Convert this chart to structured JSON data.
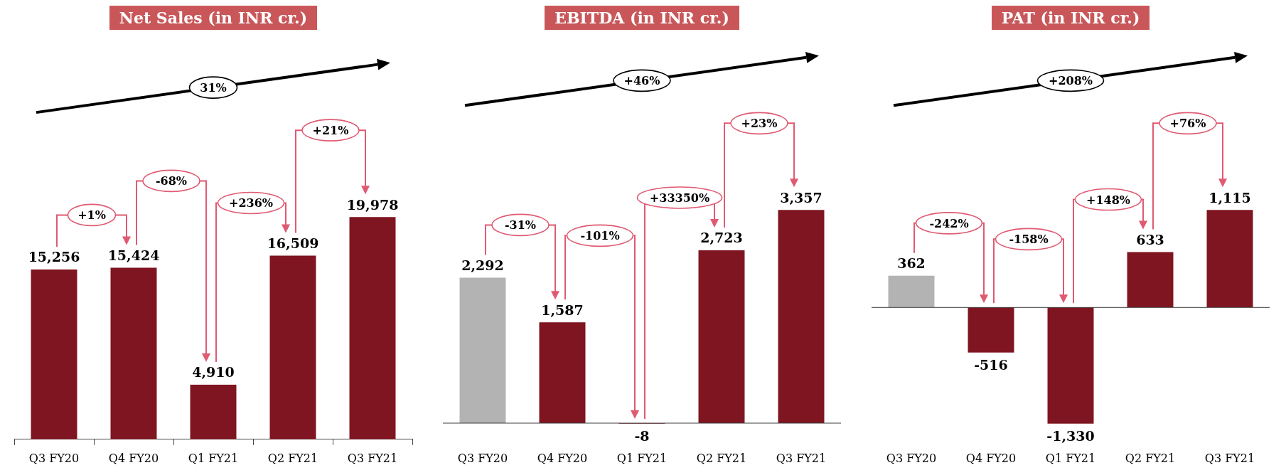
{
  "chart_data": [
    {
      "type": "bar",
      "title": "Net Sales (in INR cr.)",
      "categories": [
        "Q3 FY20",
        "Q4 FY20",
        "Q1 FY21",
        "Q2 FY21",
        "Q3 FY21"
      ],
      "values": [
        15256,
        15424,
        4910,
        16509,
        19978
      ],
      "value_labels": [
        "15,256",
        "15,424",
        "4,910",
        "16,509",
        "19,978"
      ],
      "colors": [
        "#7f1520",
        "#7f1520",
        "#7f1520",
        "#7f1520",
        "#7f1520"
      ],
      "annotations": [
        "31%",
        "+1%",
        "-68%",
        "+236%",
        "+21%"
      ]
    },
    {
      "type": "bar",
      "title": "EBITDA (in INR cr.)",
      "categories": [
        "Q3 FY20",
        "Q4 FY20",
        "Q1 FY21",
        "Q2 FY21",
        "Q3 FY21"
      ],
      "values": [
        2292,
        1587,
        -8,
        2723,
        3357
      ],
      "value_labels": [
        "2,292",
        "1,587",
        "-8",
        "2,723",
        "3,357"
      ],
      "colors": [
        "#b3b3b3",
        "#7f1520",
        "#7f1520",
        "#7f1520",
        "#7f1520"
      ],
      "annotations": [
        "+46%",
        "-31%",
        "-101%",
        "+33350%",
        "+23%"
      ]
    },
    {
      "type": "bar",
      "title": "PAT (in INR cr.)",
      "categories": [
        "Q3 FY20",
        "Q4 FY20",
        "Q1 FY21",
        "Q2 FY21",
        "Q3 FY21"
      ],
      "values": [
        362,
        -516,
        -1330,
        633,
        1115
      ],
      "value_labels": [
        "362",
        "-516",
        "-1,330",
        "633",
        "1,115"
      ],
      "colors": [
        "#b3b3b3",
        "#7f1520",
        "#7f1520",
        "#7f1520",
        "#7f1520"
      ],
      "annotations": [
        "+208%",
        "-242%",
        "-158%",
        "+148%",
        "+76%"
      ]
    }
  ]
}
